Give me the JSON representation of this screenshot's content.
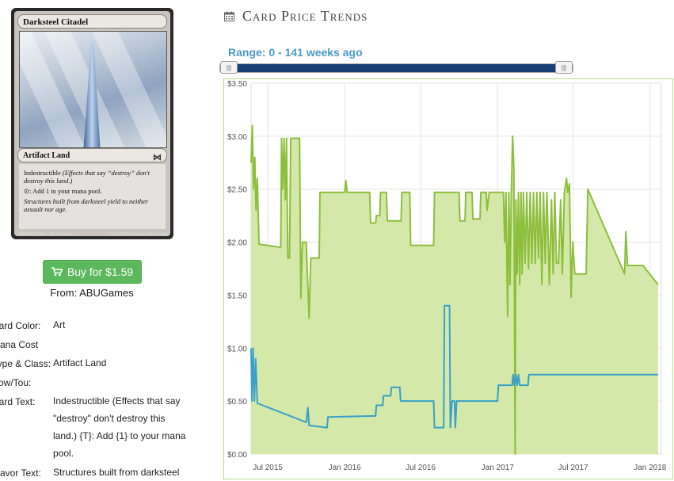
{
  "card": {
    "name": "Darksteel Citadel",
    "type_line": "Artifact Land",
    "rules_text_1": "Indestructible",
    "rules_text_1_reminder": "(Effects that say “destroy” don't destroy this land.)",
    "rules_text_2": ": Add 1 to your mana pool.",
    "flavor": "Structures built from darksteel yield to neither assault nor age.",
    "collector": "238/249 C",
    "set_line": "MM2 • EN",
    "artist": "Jorn Avon",
    "copyright": "™ & © 2015 Wizards of the Coast"
  },
  "buy": {
    "label": "Buy for $1.59",
    "from": "From: ABUGames"
  },
  "details": [
    {
      "label": "Card Color:",
      "value": "Art"
    },
    {
      "label": "Mana Cost",
      "value": ""
    },
    {
      "label": "Type & Class:",
      "value": "Artifact Land"
    },
    {
      "label": "Pow/Tou:",
      "value": ""
    },
    {
      "label": "Card Text:",
      "value": "Indestructible (Effects that say \"destroy\" don't destroy this land.) {T}: Add {1} to your mana pool."
    },
    {
      "label": "Flavor Text:",
      "value": "Structures built from darksteel"
    }
  ],
  "section": {
    "title": "Card Price Trends",
    "icon": "calendar-icon"
  },
  "range": {
    "label": "Range: 0 - 141 weeks ago",
    "from_week": 0,
    "to_week": 141,
    "handle_left_glyph": "|||",
    "handle_right_glyph": "|||"
  },
  "colors": {
    "paper_line": "#8dbf3d",
    "paper_fill": "#d4e8a9",
    "foil_line": "#3aa0c8",
    "buy_button": "#5cb85c",
    "accent": "#4b9bc9"
  },
  "chart_data": {
    "type": "area",
    "x_ticks": [
      "Jul 2015",
      "Jan 2016",
      "Jul 2016",
      "Jan 2017",
      "Jul 2017",
      "Jan 2018"
    ],
    "y_ticks": [
      "$0.00",
      "$0.50",
      "$1.00",
      "$1.50",
      "$2.00",
      "$2.50",
      "$3.00",
      "$3.50"
    ],
    "ylim": [
      0,
      3.5
    ],
    "xlim": [
      "2015-05-22",
      "2018-01-28"
    ],
    "grid": true,
    "series": [
      {
        "style": "area",
        "points": [
          [
            "2015-05-22",
            2.75
          ],
          [
            "2015-05-25",
            3.1
          ],
          [
            "2015-05-28",
            2.5
          ],
          [
            "2015-05-31",
            2.8
          ],
          [
            "2015-06-03",
            2.3
          ],
          [
            "2015-06-06",
            2.6
          ],
          [
            "2015-06-10",
            1.98
          ],
          [
            "2015-07-01",
            1.97
          ],
          [
            "2015-08-01",
            1.95
          ],
          [
            "2015-08-03",
            2.98
          ],
          [
            "2015-08-06",
            2.5
          ],
          [
            "2015-08-09",
            2.98
          ],
          [
            "2015-08-12",
            2.4
          ],
          [
            "2015-08-15",
            2.98
          ],
          [
            "2015-08-18",
            1.85
          ],
          [
            "2015-08-22",
            1.85
          ],
          [
            "2015-08-25",
            2.98
          ],
          [
            "2015-09-15",
            2.98
          ],
          [
            "2015-09-18",
            1.47
          ],
          [
            "2015-09-22",
            2.0
          ],
          [
            "2015-10-01",
            2.0
          ],
          [
            "2015-10-08",
            1.28
          ],
          [
            "2015-10-12",
            1.85
          ],
          [
            "2015-11-01",
            1.85
          ],
          [
            "2015-11-03",
            2.47
          ],
          [
            "2016-01-01",
            2.47
          ],
          [
            "2016-01-04",
            2.58
          ],
          [
            "2016-01-07",
            2.47
          ],
          [
            "2016-03-01",
            2.47
          ],
          [
            "2016-03-03",
            2.18
          ],
          [
            "2016-03-15",
            2.18
          ],
          [
            "2016-03-17",
            2.25
          ],
          [
            "2016-03-25",
            2.25
          ],
          [
            "2016-03-27",
            2.47
          ],
          [
            "2016-04-10",
            2.47
          ],
          [
            "2016-04-12",
            2.2
          ],
          [
            "2016-05-15",
            2.2
          ],
          [
            "2016-05-17",
            2.47
          ],
          [
            "2016-06-05",
            2.47
          ],
          [
            "2016-06-07",
            1.97
          ],
          [
            "2016-08-01",
            1.97
          ],
          [
            "2016-08-03",
            2.47
          ],
          [
            "2016-10-01",
            2.47
          ],
          [
            "2016-10-03",
            2.2
          ],
          [
            "2016-10-15",
            2.2
          ],
          [
            "2016-10-17",
            2.47
          ],
          [
            "2016-11-01",
            2.47
          ],
          [
            "2016-11-03",
            2.22
          ],
          [
            "2016-11-20",
            2.22
          ],
          [
            "2016-11-22",
            2.47
          ],
          [
            "2016-12-05",
            2.47
          ],
          [
            "2016-12-07",
            2.3
          ],
          [
            "2016-12-12",
            2.47
          ],
          [
            "2017-01-15",
            2.47
          ],
          [
            "2017-01-18",
            2.0
          ],
          [
            "2017-01-21",
            2.47
          ],
          [
            "2017-01-25",
            1.3
          ],
          [
            "2017-01-28",
            2.47
          ],
          [
            "2017-01-31",
            1.6
          ],
          [
            "2017-02-03",
            2.47
          ],
          [
            "2017-02-06",
            3.0
          ],
          [
            "2017-02-09",
            2.7
          ],
          [
            "2017-02-12",
            0.0
          ],
          [
            "2017-02-14",
            2.4
          ],
          [
            "2017-02-17",
            1.7
          ],
          [
            "2017-02-20",
            2.47
          ],
          [
            "2017-02-23",
            1.6
          ],
          [
            "2017-02-26",
            2.47
          ],
          [
            "2017-03-01",
            1.7
          ],
          [
            "2017-03-04",
            2.47
          ],
          [
            "2017-03-08",
            1.8
          ],
          [
            "2017-03-12",
            2.47
          ],
          [
            "2017-03-16",
            1.75
          ],
          [
            "2017-03-20",
            2.47
          ],
          [
            "2017-03-24",
            1.8
          ],
          [
            "2017-03-28",
            2.47
          ],
          [
            "2017-04-01",
            1.8
          ],
          [
            "2017-04-05",
            2.47
          ],
          [
            "2017-04-09",
            1.85
          ],
          [
            "2017-04-13",
            2.47
          ],
          [
            "2017-04-17",
            1.6
          ],
          [
            "2017-04-21",
            2.47
          ],
          [
            "2017-04-25",
            1.8
          ],
          [
            "2017-04-29",
            2.47
          ],
          [
            "2017-05-05",
            1.6
          ],
          [
            "2017-05-10",
            2.4
          ],
          [
            "2017-05-14",
            1.7
          ],
          [
            "2017-05-18",
            2.47
          ],
          [
            "2017-05-22",
            1.8
          ],
          [
            "2017-05-27",
            1.8
          ],
          [
            "2017-06-01",
            2.4
          ],
          [
            "2017-06-05",
            1.7
          ],
          [
            "2017-06-10",
            2.47
          ],
          [
            "2017-06-15",
            2.6
          ],
          [
            "2017-06-18",
            2.47
          ],
          [
            "2017-06-22",
            2.55
          ],
          [
            "2017-06-26",
            1.48
          ],
          [
            "2017-06-30",
            2.0
          ],
          [
            "2017-07-05",
            1.7
          ],
          [
            "2017-07-15",
            1.7
          ],
          [
            "2017-08-01",
            1.7
          ],
          [
            "2017-08-05",
            2.5
          ],
          [
            "2017-11-01",
            1.7
          ],
          [
            "2017-11-04",
            2.1
          ],
          [
            "2017-11-08",
            1.78
          ],
          [
            "2017-12-15",
            1.78
          ],
          [
            "2018-01-20",
            1.6
          ]
        ]
      },
      {
        "style": "line",
        "points": [
          [
            "2015-05-22",
            1.0
          ],
          [
            "2015-05-24",
            0.5
          ],
          [
            "2015-05-27",
            1.0
          ],
          [
            "2015-05-30",
            0.5
          ],
          [
            "2015-06-02",
            0.9
          ],
          [
            "2015-06-06",
            0.48
          ],
          [
            "2015-10-01",
            0.3
          ],
          [
            "2015-10-05",
            0.44
          ],
          [
            "2015-10-08",
            0.27
          ],
          [
            "2015-11-20",
            0.25
          ],
          [
            "2015-11-22",
            0.35
          ],
          [
            "2016-03-15",
            0.36
          ],
          [
            "2016-03-17",
            0.46
          ],
          [
            "2016-04-01",
            0.46
          ],
          [
            "2016-04-03",
            0.55
          ],
          [
            "2016-04-20",
            0.55
          ],
          [
            "2016-04-22",
            0.63
          ],
          [
            "2016-05-12",
            0.63
          ],
          [
            "2016-05-14",
            0.5
          ],
          [
            "2016-08-01",
            0.5
          ],
          [
            "2016-08-03",
            0.25
          ],
          [
            "2016-08-25",
            0.25
          ],
          [
            "2016-08-27",
            1.4
          ],
          [
            "2016-09-08",
            1.4
          ],
          [
            "2016-09-10",
            0.25
          ],
          [
            "2016-09-14",
            0.5
          ],
          [
            "2016-09-20",
            0.5
          ],
          [
            "2016-09-22",
            0.25
          ],
          [
            "2016-09-25",
            0.5
          ],
          [
            "2017-01-01",
            0.5
          ],
          [
            "2017-01-03",
            0.65
          ],
          [
            "2017-02-05",
            0.65
          ],
          [
            "2017-02-07",
            0.75
          ],
          [
            "2017-02-10",
            0.65
          ],
          [
            "2017-02-14",
            0.75
          ],
          [
            "2017-02-17",
            0.65
          ],
          [
            "2017-02-20",
            0.75
          ],
          [
            "2017-02-23",
            0.65
          ],
          [
            "2017-03-15",
            0.65
          ],
          [
            "2017-03-17",
            0.75
          ],
          [
            "2018-01-20",
            0.75
          ]
        ]
      }
    ]
  }
}
